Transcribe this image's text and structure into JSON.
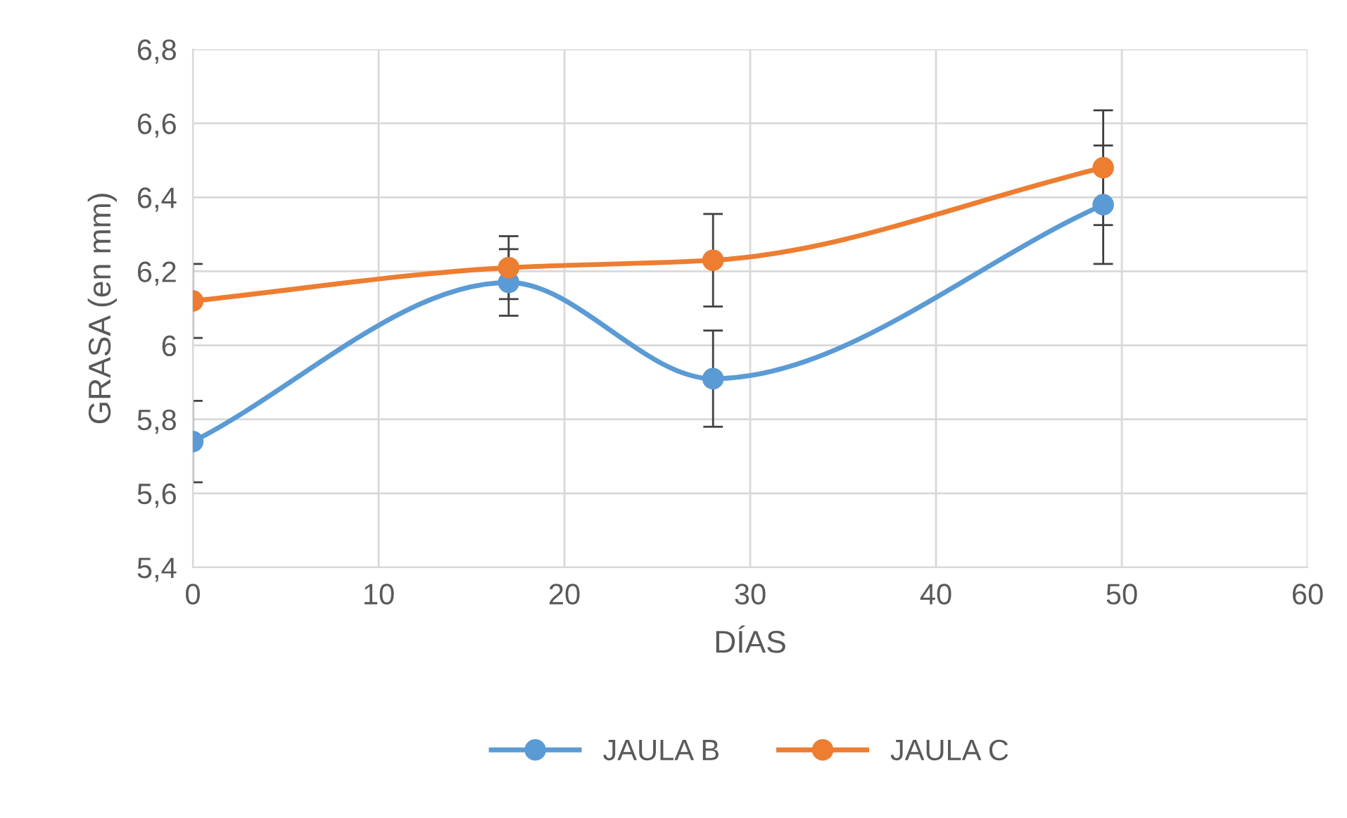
{
  "chart_data": {
    "type": "line",
    "xlabel": "DÍAS",
    "ylabel": "GRASA (en mm)",
    "x": [
      0,
      17,
      28,
      49
    ],
    "series": [
      {
        "name": "JAULA B",
        "color": "#5b9bd5",
        "values": [
          5.74,
          6.17,
          5.91,
          6.38
        ],
        "errors": [
          0.11,
          0.09,
          0.13,
          0.16
        ]
      },
      {
        "name": "JAULA C",
        "color": "#ed7d31",
        "values": [
          6.12,
          6.21,
          6.23,
          6.48
        ],
        "errors": [
          0.1,
          0.085,
          0.125,
          0.155
        ]
      }
    ],
    "xlim": [
      0,
      60
    ],
    "xticks": [
      0,
      10,
      20,
      30,
      40,
      50,
      60
    ],
    "ylim": [
      5.4,
      6.8
    ],
    "yticks": [
      {
        "value": 5.4,
        "label": "5,4"
      },
      {
        "value": 5.6,
        "label": "5,6"
      },
      {
        "value": 5.8,
        "label": "5,8"
      },
      {
        "value": 6,
        "label": "6"
      },
      {
        "value": 6.2,
        "label": "6,2"
      },
      {
        "value": 6.4,
        "label": "6,4"
      },
      {
        "value": 6.6,
        "label": "6,6"
      },
      {
        "value": 6.8,
        "label": "6,8"
      }
    ],
    "grid": true,
    "legend": "bottom",
    "marker": "circle",
    "line_style": "solid"
  }
}
